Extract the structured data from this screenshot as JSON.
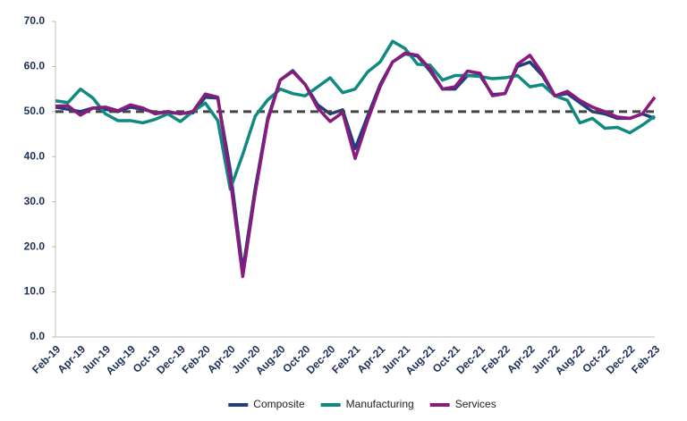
{
  "chart_data": {
    "type": "line",
    "categories": [
      "Feb-19",
      null,
      "Apr-19",
      null,
      "Jun-19",
      null,
      "Aug-19",
      null,
      "Oct-19",
      null,
      "Dec-19",
      null,
      "Feb-20",
      null,
      "Apr-20",
      null,
      "Jun-20",
      null,
      "Aug-20",
      null,
      "Oct-20",
      null,
      "Dec-20",
      null,
      "Feb-21",
      null,
      "Apr-21",
      null,
      "Jun-21",
      null,
      "Aug-21",
      null,
      "Oct-21",
      null,
      "Dec-21",
      null,
      "Feb-22",
      null,
      "Apr-22",
      null,
      "Jun-22",
      null,
      "Aug-22",
      null,
      "Oct-22",
      null,
      "Dec-22",
      null,
      "Feb-23"
    ],
    "series": [
      {
        "name": "Composite",
        "color": "#1d3f7c",
        "values": [
          51.0,
          50.5,
          50.0,
          50.8,
          50.5,
          50.0,
          51.0,
          50.5,
          49.8,
          49.8,
          49.6,
          49.7,
          53.2,
          53.0,
          37.0,
          14.8,
          33.0,
          48.5,
          57.0,
          59.1,
          56.0,
          51.5,
          49.5,
          50.4,
          41.8,
          49.0,
          56.0,
          61.0,
          62.8,
          62.3,
          59.0,
          55.0,
          55.0,
          58.0,
          58.0,
          53.8,
          54.0,
          60.0,
          61.0,
          58.0,
          53.5,
          54.0,
          52.0,
          50.0,
          49.5,
          48.5,
          48.5,
          49.5,
          48.5
        ]
      },
      {
        "name": "Manufacturing",
        "color": "#0f8a80",
        "values": [
          52.4,
          52.0,
          55.0,
          53.0,
          49.5,
          48.0,
          48.0,
          47.5,
          48.3,
          49.5,
          47.8,
          50.0,
          51.9,
          48.0,
          32.8,
          40.5,
          49.0,
          52.6,
          55.0,
          54.0,
          53.5,
          55.5,
          57.5,
          54.2,
          55.0,
          58.8,
          61.0,
          65.6,
          64.0,
          60.5,
          60.3,
          57.0,
          58.0,
          58.0,
          57.8,
          57.3,
          57.5,
          58.0,
          55.5,
          56.0,
          53.5,
          52.5,
          47.5,
          48.5,
          46.3,
          46.5,
          45.3,
          47.0,
          49.0
        ]
      },
      {
        "name": "Services",
        "color": "#8a1a7e",
        "values": [
          51.2,
          51.3,
          49.2,
          50.8,
          51.0,
          50.2,
          51.5,
          50.8,
          49.5,
          50.0,
          49.5,
          50.0,
          53.9,
          53.2,
          35.0,
          13.4,
          32.0,
          48.0,
          57.0,
          58.9,
          56.0,
          50.8,
          47.8,
          49.8,
          39.6,
          48.0,
          55.5,
          61.0,
          63.0,
          62.5,
          59.5,
          55.0,
          55.5,
          59.0,
          58.5,
          53.5,
          54.0,
          60.5,
          62.5,
          58.5,
          53.5,
          54.5,
          52.5,
          51.0,
          50.0,
          48.8,
          48.5,
          49.5,
          53.2
        ]
      }
    ],
    "reference_line": 50,
    "ylim": [
      0,
      70
    ],
    "yticks": [
      {
        "value": 0,
        "label": "0.0"
      },
      {
        "value": 10,
        "label": "10.0"
      },
      {
        "value": 20,
        "label": "20.0"
      },
      {
        "value": 30,
        "label": "30.0"
      },
      {
        "value": 40,
        "label": "40.0"
      },
      {
        "value": 50,
        "label": "50.0"
      },
      {
        "value": 60,
        "label": "60.0"
      },
      {
        "value": 70,
        "label": "70.0"
      }
    ],
    "legend": "bottom"
  }
}
